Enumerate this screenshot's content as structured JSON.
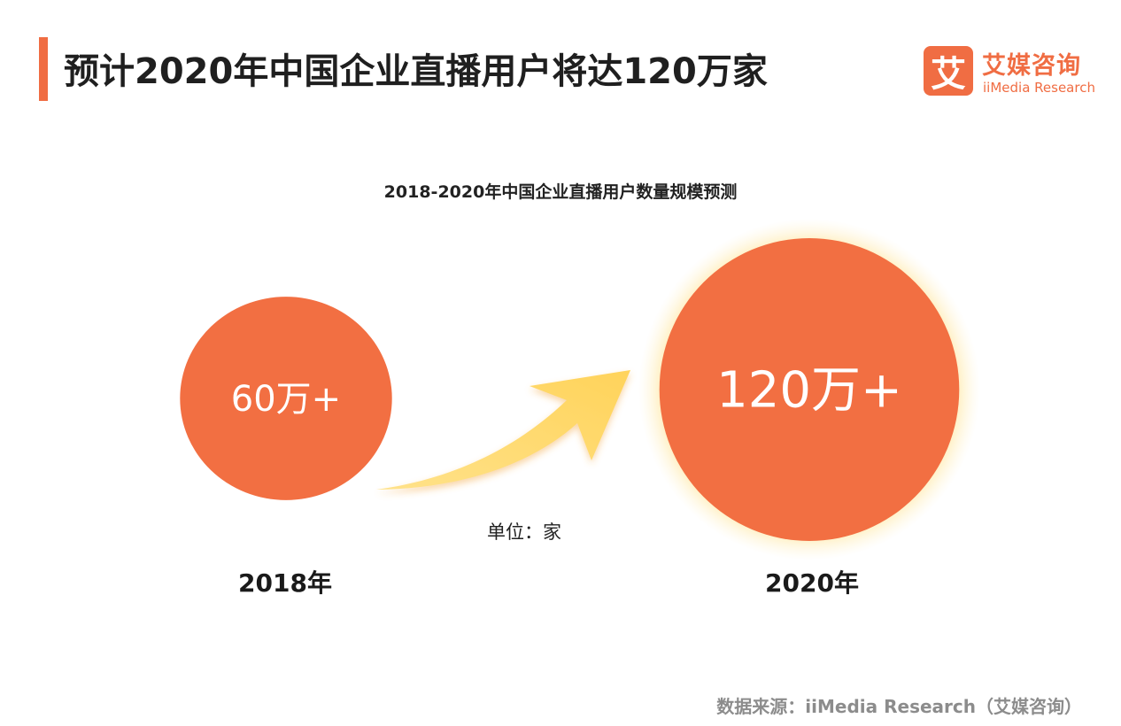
{
  "header": {
    "title": "预计2020年中国企业直播用户将达120万家"
  },
  "logo": {
    "mark": "艾",
    "name_cn": "艾媒咨询",
    "name_en": "iiMedia Research"
  },
  "colors": {
    "accent": "#f06d43",
    "bubble": "#f26f42",
    "arrow_light": "#ffd966",
    "arrow_dark": "#f6b13c",
    "glow": "#ffe9a8"
  },
  "chart_data": {
    "type": "bubble",
    "title": "2018-2020年中国企业直播用户数量规模预测",
    "unit_label": "单位：家",
    "categories": [
      "2018年",
      "2020年"
    ],
    "values": [
      600000,
      1200000
    ],
    "data_labels": [
      "60万+",
      "120万+"
    ],
    "trend_arrow": "up-right"
  },
  "source": "数据来源：iiMedia Research（艾媒咨询）"
}
